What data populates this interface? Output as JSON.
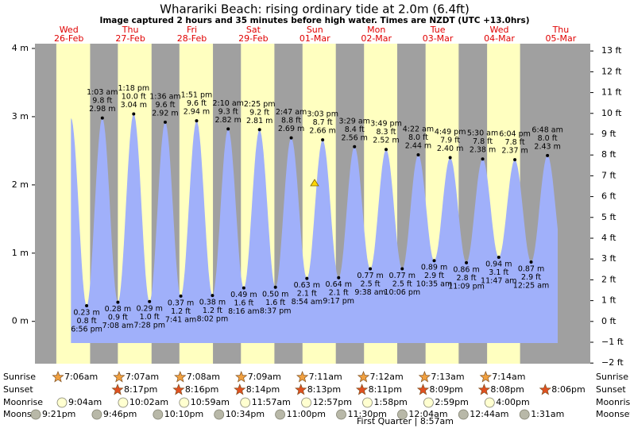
{
  "chart_data": {
    "type": "tide",
    "title": "Wharariki Beach: rising  ordinary tide at 2.0m (6.4ft)",
    "subtitle": "Image captured 2 hours and 35 minutes before high water. Times are NZDT (UTC +13.0hrs)",
    "days": [
      [
        "Wed",
        "26-Feb"
      ],
      [
        "Thu",
        "27-Feb"
      ],
      [
        "Fri",
        "28-Feb"
      ],
      [
        "Sat",
        "29-Feb"
      ],
      [
        "Sun",
        "01-Mar"
      ],
      [
        "Mon",
        "02-Mar"
      ],
      [
        "Tue",
        "03-Mar"
      ],
      [
        "Wed",
        "04-Mar"
      ],
      [
        "Thu",
        "05-Mar"
      ]
    ],
    "ylim": [
      -0.62,
      4.07
    ],
    "yticks": [
      {
        "value": 4,
        "label": "4 m"
      },
      {
        "value": 3,
        "label": "3 m"
      },
      {
        "value": 2,
        "label": "2 m"
      },
      {
        "value": 1,
        "label": "1 m"
      },
      {
        "value": 0,
        "label": "0 m"
      }
    ],
    "y2lim": [
      -2.03,
      13.35
    ],
    "y2ticks": [
      {
        "value": 13,
        "label": "13 ft"
      },
      {
        "value": 12,
        "label": "12 ft"
      },
      {
        "value": 11,
        "label": "11 ft"
      },
      {
        "value": 10,
        "label": "10 ft"
      },
      {
        "value": 9,
        "label": "9 ft"
      },
      {
        "value": 8,
        "label": "8 ft"
      },
      {
        "value": 7,
        "label": "7 ft"
      },
      {
        "value": 6,
        "label": "6 ft"
      },
      {
        "value": 5,
        "label": "5 ft"
      },
      {
        "value": 4,
        "label": "4 ft"
      },
      {
        "value": 3,
        "label": "3 ft"
      },
      {
        "value": 2,
        "label": "2 ft"
      },
      {
        "value": 1,
        "label": "1 ft"
      },
      {
        "value": 0,
        "label": "0 ft"
      },
      {
        "value": -1,
        "label": "−1 ft"
      },
      {
        "value": -2,
        "label": "−2 ft"
      }
    ],
    "color": "#a0b0fa",
    "day_color": "#ffffc0",
    "night_color": "#a0a0a0",
    "times": [
      "6:56 pm",
      "1:03 am",
      "7:08 am",
      "1:18 pm",
      "7:28 pm",
      "1:36 am",
      "7:41 am",
      "1:51 pm",
      "8:02 pm",
      "2:10 am",
      "8:16 am",
      "2:25 pm",
      "8:37 pm",
      "2:47 am",
      "8:54 am",
      "3:03 pm",
      "9:17 pm",
      "3:29 am",
      "9:38 am",
      "3:49 pm",
      "10:06 pm",
      "4:22 am",
      "10:35 am",
      "4:49 pm",
      "11:09 pm",
      "5:30 am",
      "11:47 am",
      "6:04 pm",
      "12:25 am",
      "6:48 am"
    ],
    "values": [
      0.23,
      2.98,
      0.28,
      3.04,
      0.29,
      2.92,
      0.37,
      2.94,
      0.38,
      2.82,
      0.49,
      2.81,
      0.5,
      2.69,
      0.63,
      2.66,
      0.64,
      2.56,
      0.77,
      2.52,
      0.77,
      2.44,
      0.89,
      2.4,
      0.86,
      2.38,
      0.94,
      2.37,
      0.87,
      2.43
    ],
    "value_labels": [
      "0.23 m",
      "2.98 m",
      "0.28 m",
      "3.04 m",
      "0.29 m",
      "2.92 m",
      "0.37 m",
      "2.94 m",
      "0.38 m",
      "2.82 m",
      "0.49 m",
      "2.81 m",
      "0.50 m",
      "2.69 m",
      "0.63 m",
      "2.66 m",
      "0.64 m",
      "2.56 m",
      "0.77 m",
      "2.52 m",
      "0.77 m",
      "2.44 m",
      "0.89 m",
      "2.40 m",
      "0.86 m",
      "2.38 m",
      "0.94 m",
      "2.37 m",
      "0.87 m",
      "2.43 m"
    ],
    "ft_values": [
      0.8,
      9.8,
      0.9,
      10.0,
      1.0,
      9.6,
      1.2,
      9.6,
      1.2,
      9.3,
      1.6,
      9.2,
      1.6,
      8.8,
      2.1,
      8.7,
      2.1,
      8.4,
      2.5,
      8.3,
      2.5,
      8.0,
      2.9,
      7.9,
      2.8,
      7.8,
      3.1,
      7.8,
      2.9,
      8.0
    ],
    "ft_labels": [
      "0.8 ft",
      "9.8 ft",
      "0.9 ft",
      "10.0 ft",
      "1.0 ft",
      "9.6 ft",
      "1.2 ft",
      "9.6 ft",
      "1.2 ft",
      "9.3 ft",
      "1.6 ft",
      "9.2 ft",
      "1.6 ft",
      "8.8 ft",
      "2.1 ft",
      "8.7 ft",
      "2.1 ft",
      "8.4 ft",
      "2.5 ft",
      "8.3 ft",
      "2.5 ft",
      "8.0 ft",
      "2.9 ft",
      "7.9 ft",
      "2.8 ft",
      "7.8 ft",
      "3.1 ft",
      "7.8 ft",
      "2.9 ft",
      "8.0 ft"
    ],
    "rows": [
      {
        "label": "Sunrise",
        "times": [
          "7:06am",
          "7:07am",
          "7:08am",
          "7:09am",
          "7:11am",
          "7:12am",
          "7:13am",
          "7:14am"
        ]
      },
      {
        "label": "Sunset",
        "times": [
          "8:17pm",
          "8:16pm",
          "8:14pm",
          "8:13pm",
          "8:11pm",
          "8:09pm",
          "8:08pm",
          "8:06pm"
        ]
      },
      {
        "label": "Moonrise",
        "times": [
          "9:04am",
          "10:02am",
          "10:59am",
          "11:57am",
          "12:57pm",
          "1:58pm",
          "2:59pm",
          "4:00pm"
        ]
      },
      {
        "label": "Moonset",
        "times": [
          "9:21pm",
          "9:46pm",
          "10:10pm",
          "10:34pm",
          "11:00pm",
          "11:30pm",
          "12:04am",
          "12:44am",
          "1:31am"
        ]
      }
    ],
    "moon_phase": "First Quarter | 8:57am"
  }
}
